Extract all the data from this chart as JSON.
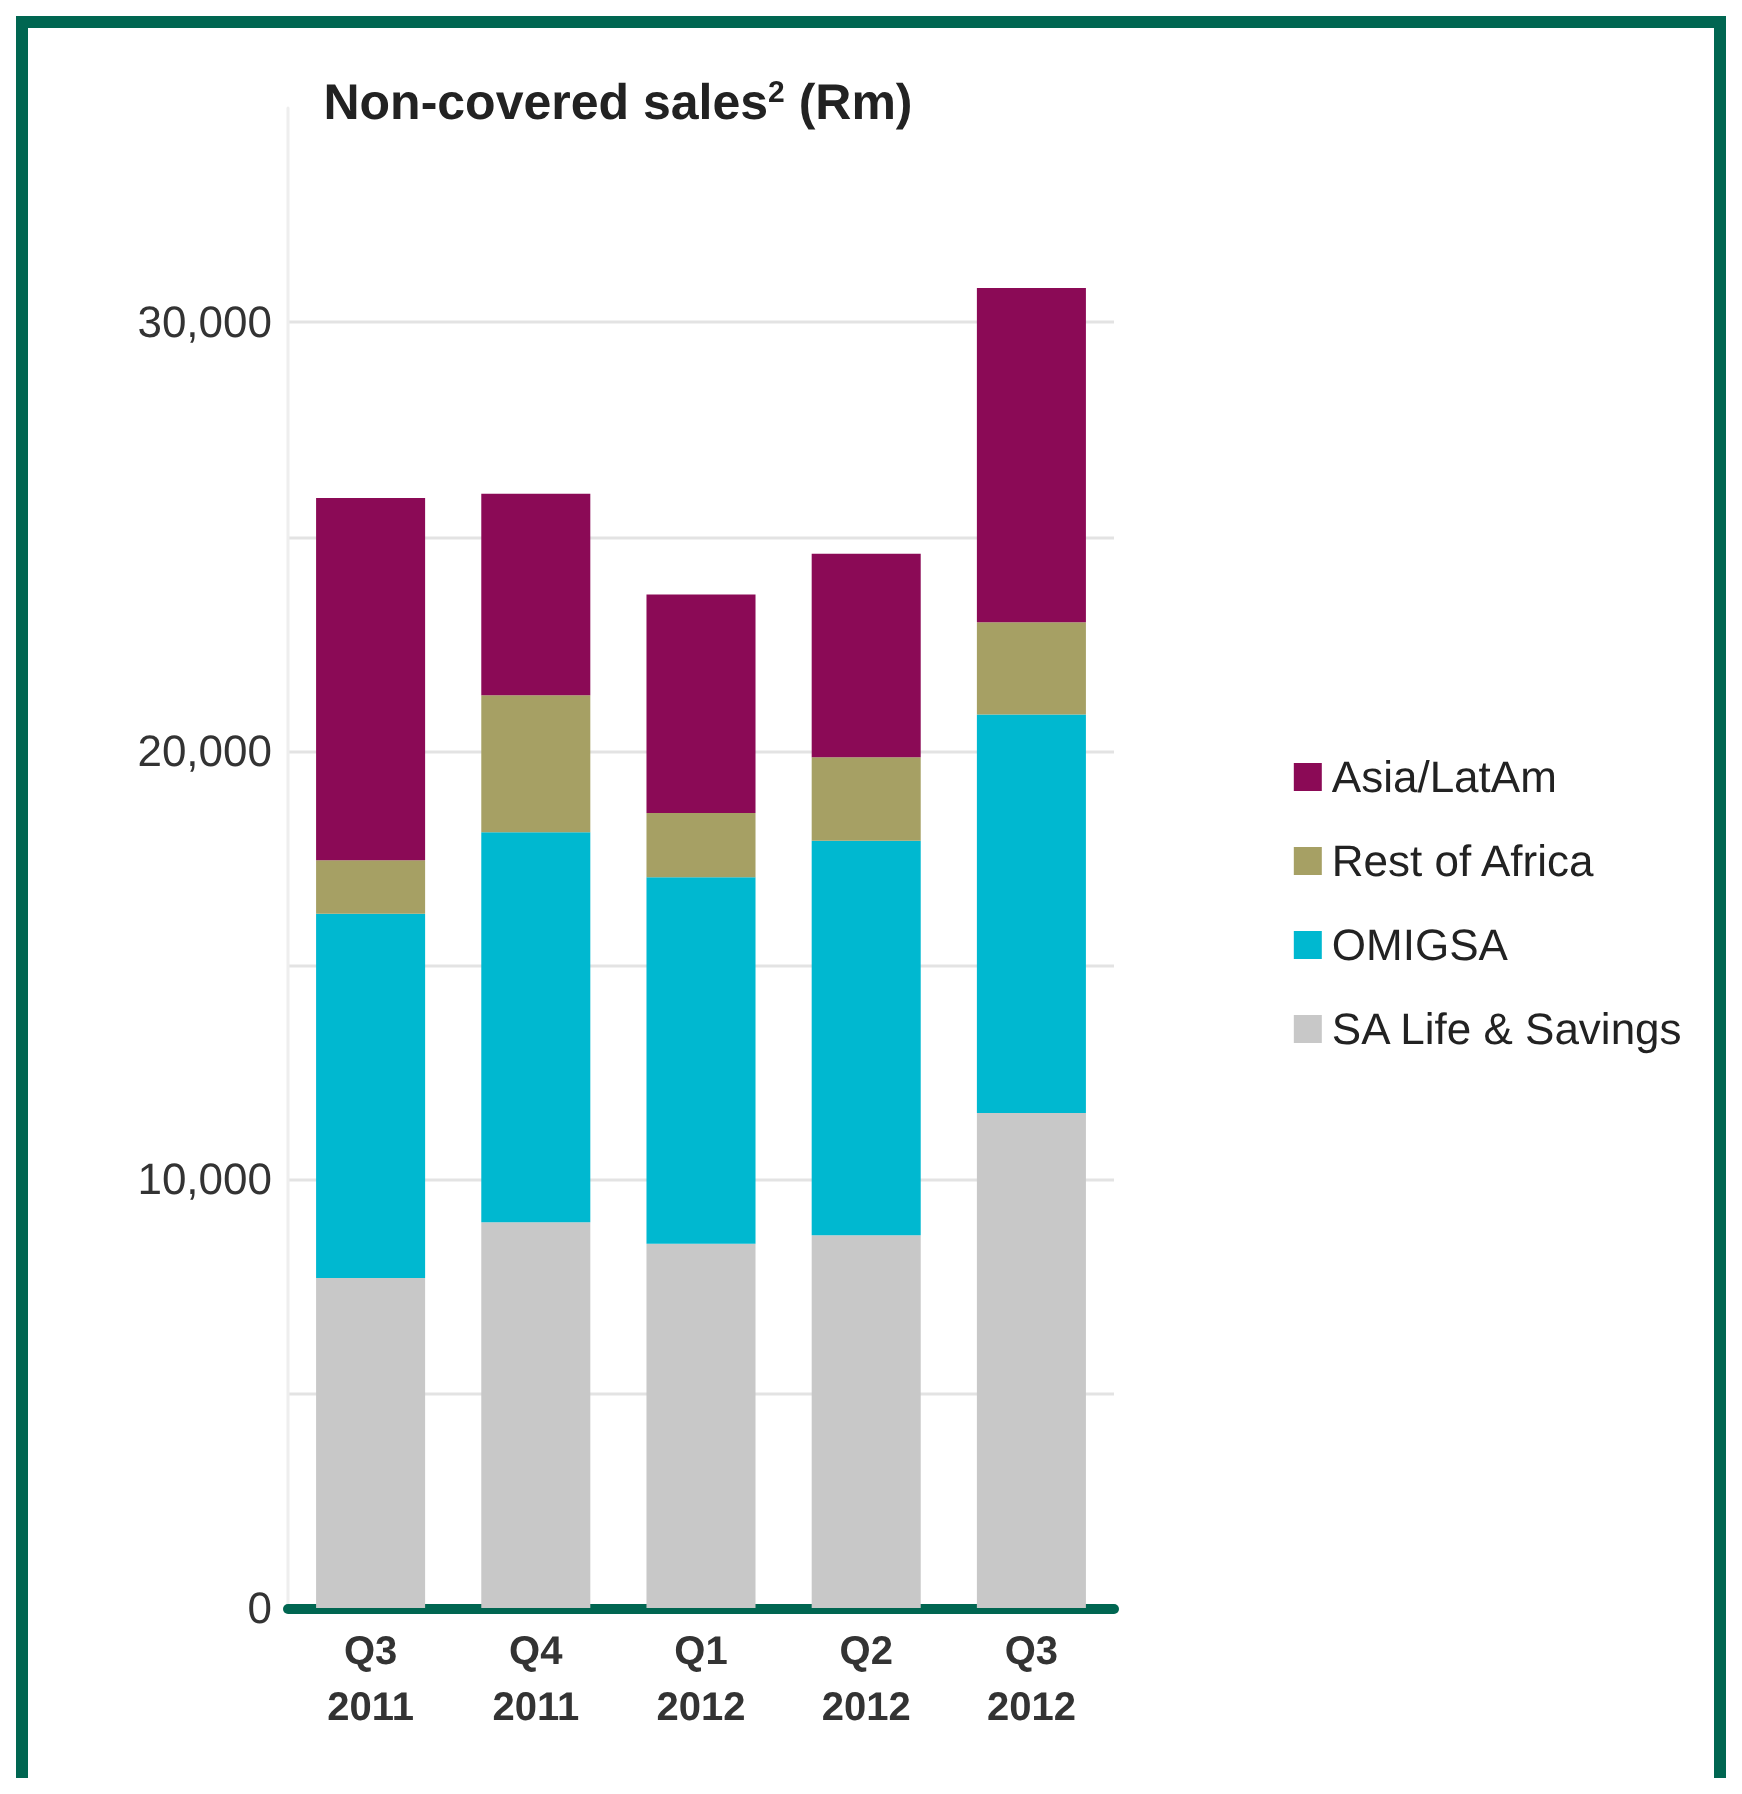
{
  "chart_data": {
    "type": "bar",
    "title": "Non-covered sales$^{2}$ (Rm)",
    "stacked": true,
    "categories": [
      "Q3\n2011",
      "Q4\n2011",
      "Q1\n2012",
      "Q2\n2012",
      "Q3\n2012"
    ],
    "series": [
      {
        "name": "SA Life & Savings",
        "color": "#c8c8c8",
        "values": [
          7700,
          9000,
          8500,
          8700,
          11550
        ]
      },
      {
        "name": "OMIGSA",
        "color": "#00b8d0",
        "values": [
          8500,
          9100,
          8550,
          9200,
          9300
        ]
      },
      {
        "name": "Rest of Africa",
        "color": "#a6a064",
        "values": [
          1250,
          3200,
          1500,
          1950,
          2150
        ]
      },
      {
        "name": "Asia/LatAm",
        "color": "#8b0a56",
        "values": [
          8450,
          4700,
          5100,
          4750,
          7800
        ]
      }
    ],
    "ylim": [
      0,
      35000
    ],
    "yticks": [
      0,
      {
        "value": 5000,
        "label": null
      },
      "10,000",
      {
        "value": 15000,
        "label": null
      },
      {
        "value": 20000,
        "label": "20,000"
      },
      {
        "value": 25000,
        "label": null
      },
      {
        "value": 30000,
        "label": "30,000"
      }
    ],
    "grid": "y",
    "legend": "right"
  }
}
